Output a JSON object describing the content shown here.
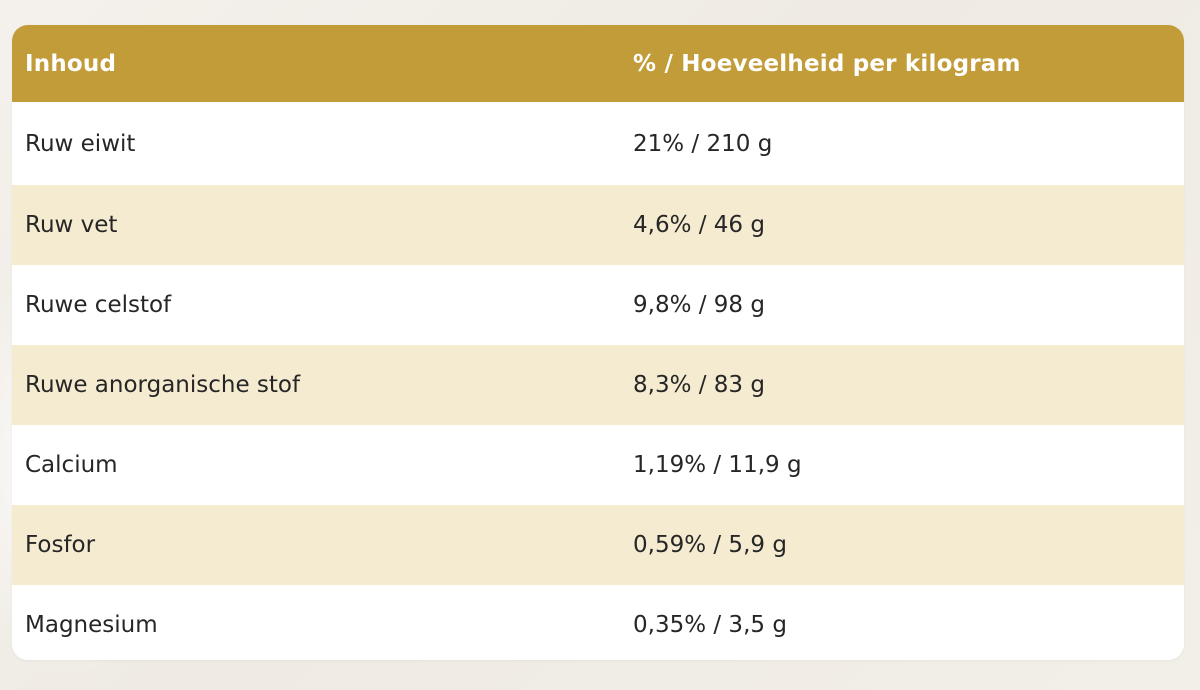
{
  "table": {
    "headers": [
      "Inhoud",
      "% / Hoeveelheid per kilogram"
    ],
    "rows": [
      [
        "Ruw eiwit",
        "21% / 210 g"
      ],
      [
        "Ruw vet",
        "4,6% / 46 g"
      ],
      [
        "Ruwe celstof",
        "9,8% / 98 g"
      ],
      [
        "Ruwe anorganische stof",
        "8,3% / 83 g"
      ],
      [
        "Calcium",
        "1,19% / 11,9 g"
      ],
      [
        "Fosfor",
        "0,59% / 5,9 g"
      ],
      [
        "Magnesium",
        "0,35% / 3,5 g"
      ]
    ]
  },
  "colors": {
    "header_bg": "#c19c38",
    "stripe_bg": "#f4ebd0",
    "row_bg": "#ffffff"
  }
}
